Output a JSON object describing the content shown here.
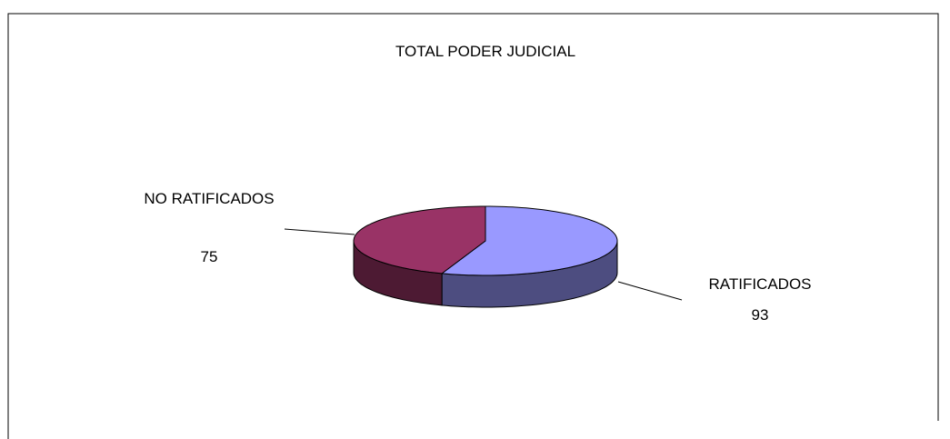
{
  "chart_data": {
    "type": "pie",
    "title": "TOTAL PODER JUDICIAL",
    "categories": [
      "RATIFICADOS",
      "NO RATIFICADOS"
    ],
    "values": [
      93,
      75
    ],
    "colors": [
      "#9999ff",
      "#993366"
    ],
    "side_colors": [
      "#4d4d80",
      "#4d1a33"
    ]
  }
}
